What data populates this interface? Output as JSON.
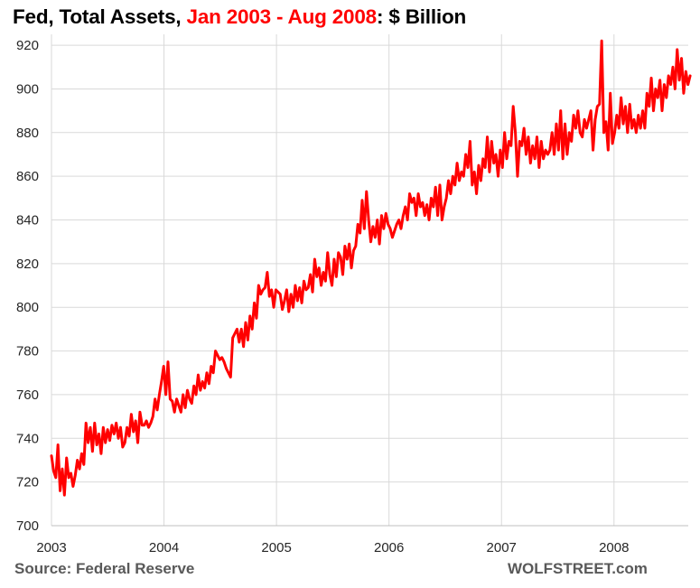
{
  "chart_data": {
    "type": "line",
    "title": {
      "prefix": "Fed, Total Assets, ",
      "highlight": "Jan 2003 - Aug 2008",
      "suffix": ": $ Billion"
    },
    "xlabel": "",
    "ylabel": "",
    "xlim": [
      2003.0,
      2008.66
    ],
    "ylim": [
      700,
      925
    ],
    "y_ticks": [
      700,
      720,
      740,
      760,
      780,
      800,
      820,
      840,
      860,
      880,
      900,
      920
    ],
    "x_ticks": [
      {
        "value": 2003,
        "label": "2003"
      },
      {
        "value": 2004,
        "label": "2004"
      },
      {
        "value": 2005,
        "label": "2005"
      },
      {
        "value": 2006,
        "label": "2006"
      },
      {
        "value": 2007,
        "label": "2007"
      },
      {
        "value": 2008,
        "label": "2008"
      }
    ],
    "grid": true,
    "line_color": "#ff0000",
    "series": [
      {
        "start": 2003.0,
        "step_years": 0.019178,
        "values": [
          732,
          725,
          722,
          737,
          716,
          726,
          714,
          731,
          722,
          724,
          718,
          723,
          730,
          726,
          733,
          728,
          747,
          738,
          745,
          734,
          747,
          737,
          742,
          733,
          745,
          738,
          744,
          739,
          746,
          742,
          747,
          740,
          745,
          736,
          738,
          745,
          741,
          751,
          743,
          748,
          738,
          752,
          746,
          746,
          748,
          745,
          747,
          750,
          758,
          753,
          760,
          766,
          773,
          760,
          775,
          758,
          757,
          752,
          758,
          755,
          752,
          760,
          754,
          762,
          758,
          756,
          764,
          760,
          769,
          762,
          766,
          763,
          770,
          765,
          773,
          770,
          780,
          778,
          776,
          777,
          775,
          772,
          770,
          768,
          786,
          788,
          790,
          784,
          790,
          782,
          793,
          785,
          796,
          790,
          802,
          795,
          810,
          806,
          808,
          809,
          816,
          805,
          808,
          800,
          808,
          807,
          806,
          799,
          803,
          808,
          798,
          806,
          800,
          810,
          803,
          809,
          802,
          812,
          808,
          809,
          815,
          807,
          822,
          814,
          818,
          810,
          816,
          812,
          825,
          815,
          810,
          822,
          814,
          825,
          823,
          815,
          828,
          822,
          829,
          818,
          826,
          828,
          838,
          834,
          849,
          836,
          853,
          840,
          830,
          837,
          832,
          840,
          829,
          842,
          836,
          843,
          838,
          836,
          832,
          835,
          838,
          840,
          836,
          842,
          846,
          840,
          852,
          848,
          850,
          842,
          852,
          846,
          848,
          842,
          847,
          840,
          850,
          846,
          855,
          842,
          856,
          840,
          846,
          850,
          858,
          852,
          860,
          856,
          866,
          858,
          862,
          860,
          870,
          864,
          876,
          856,
          862,
          852,
          865,
          858,
          868,
          864,
          878,
          862,
          876,
          866,
          870,
          860,
          872,
          864,
          880,
          868,
          876,
          874,
          892,
          880,
          860,
          876,
          874,
          882,
          870,
          878,
          866,
          874,
          868,
          878,
          864,
          876,
          868,
          872,
          870,
          872,
          880,
          870,
          884,
          872,
          890,
          868,
          884,
          870,
          880,
          876,
          888,
          882,
          890,
          880,
          878,
          886,
          882,
          886,
          890,
          872,
          886,
          892,
          893,
          922,
          880,
          885,
          872,
          898,
          875,
          880,
          888,
          882,
          896,
          884,
          892,
          880,
          893,
          882,
          886,
          880,
          888,
          882,
          890,
          882,
          898,
          892,
          905,
          890,
          900,
          896,
          904,
          890,
          902,
          896,
          906,
          902,
          910,
          900,
          918,
          904,
          914,
          898,
          908,
          902,
          906
        ]
      }
    ]
  },
  "footer": {
    "source": "Source: Federal Reserve",
    "brand": "WOLFSTREET.com"
  }
}
